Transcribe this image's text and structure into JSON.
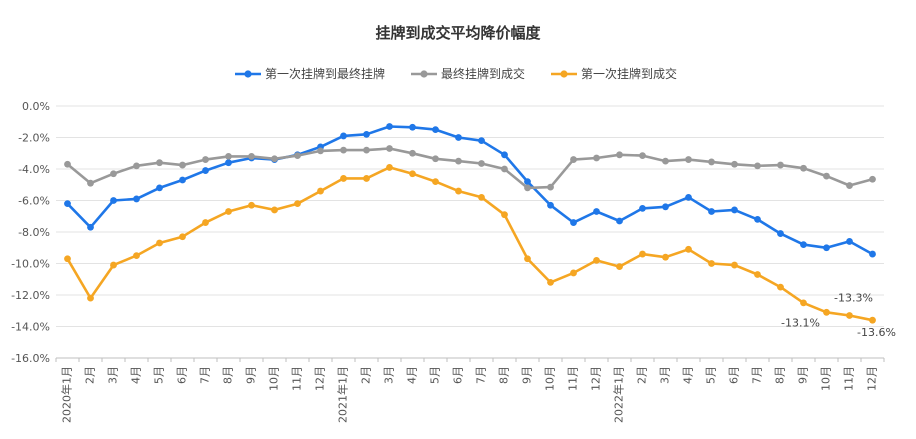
{
  "chart_data": {
    "type": "line",
    "title": "挂牌到成交平均降价幅度",
    "legend_position": "top-center",
    "grid": true,
    "ylim": [
      -16,
      0
    ],
    "y_ticks": [
      0,
      -2,
      -4,
      -6,
      -8,
      -10,
      -12,
      -14,
      -16
    ],
    "y_tick_labels": [
      "0.0%",
      "-2.0%",
      "-4.0%",
      "-6.0%",
      "-8.0%",
      "-10.0%",
      "-12.0%",
      "-14.0%",
      "-16.0%"
    ],
    "categories": [
      "2020年1月",
      "2月",
      "3月",
      "4月",
      "5月",
      "6月",
      "7月",
      "8月",
      "9月",
      "10月",
      "11月",
      "12月",
      "2021年1月",
      "2月",
      "3月",
      "4月",
      "5月",
      "6月",
      "7月",
      "8月",
      "9月",
      "10月",
      "11月",
      "12月",
      "2022年1月",
      "2月",
      "3月",
      "4月",
      "5月",
      "6月",
      "7月",
      "8月",
      "9月",
      "10月",
      "11月",
      "12月"
    ],
    "series": [
      {
        "name": "第一次挂牌到最终挂牌",
        "color": "#1f77e8",
        "values": [
          -6.2,
          -7.7,
          -6.0,
          -5.9,
          -5.2,
          -4.7,
          -4.1,
          -3.6,
          -3.3,
          -3.4,
          -3.1,
          -2.6,
          -1.9,
          -1.8,
          -1.3,
          -1.35,
          -1.5,
          -2.0,
          -2.2,
          -3.1,
          -4.8,
          -6.3,
          -7.4,
          -6.7,
          -7.3,
          -6.5,
          -6.4,
          -5.8,
          -6.7,
          -6.6,
          -7.2,
          -8.1,
          -8.8,
          -9.0,
          -8.6,
          -9.4
        ]
      },
      {
        "name": "最终挂牌到成交",
        "color": "#999999",
        "values": [
          -3.7,
          -4.9,
          -4.3,
          -3.8,
          -3.6,
          -3.75,
          -3.4,
          -3.2,
          -3.2,
          -3.35,
          -3.15,
          -2.85,
          -2.8,
          -2.8,
          -2.7,
          -3.0,
          -3.35,
          -3.5,
          -3.65,
          -4.0,
          -5.2,
          -5.15,
          -3.4,
          -3.3,
          -3.1,
          -3.15,
          -3.5,
          -3.4,
          -3.55,
          -3.7,
          -3.8,
          -3.75,
          -3.95,
          -4.45,
          -5.05,
          -4.65
        ]
      },
      {
        "name": "第一次挂牌到成交",
        "color": "#f5a623",
        "values": [
          -9.7,
          -12.2,
          -10.1,
          -9.5,
          -8.7,
          -8.3,
          -7.4,
          -6.7,
          -6.3,
          -6.6,
          -6.2,
          -5.4,
          -4.6,
          -4.6,
          -3.9,
          -4.3,
          -4.8,
          -5.4,
          -5.8,
          -6.9,
          -9.7,
          -11.2,
          -10.6,
          -9.8,
          -10.2,
          -9.4,
          -9.6,
          -9.1,
          -10.0,
          -10.1,
          -10.7,
          -11.5,
          -12.5,
          -13.1,
          -13.3,
          -13.6
        ]
      }
    ],
    "data_labels": [
      {
        "series": 2,
        "index": 33,
        "text": "-13.1%"
      },
      {
        "series": 2,
        "index": 34,
        "text": "-13.3%"
      },
      {
        "series": 2,
        "index": 35,
        "text": "-13.6%"
      }
    ]
  }
}
